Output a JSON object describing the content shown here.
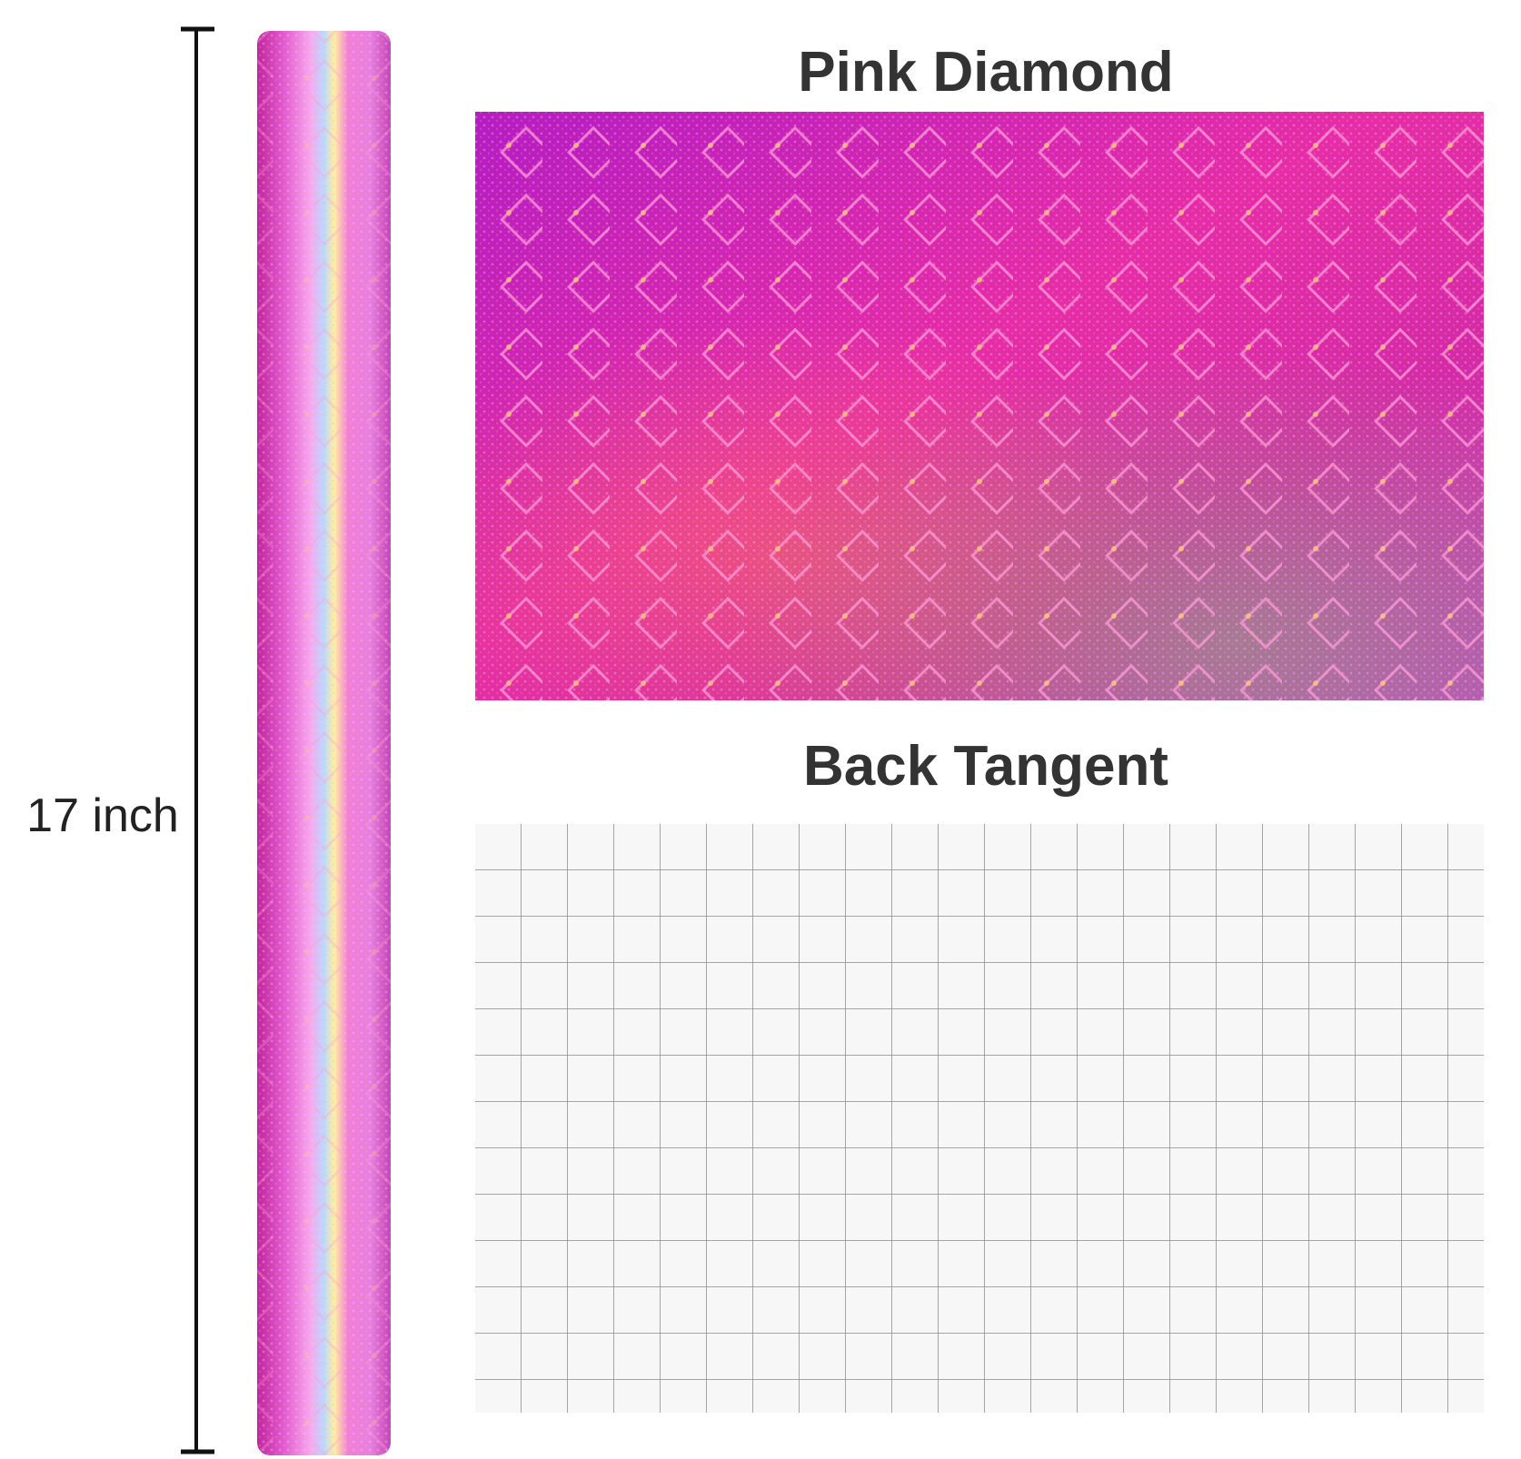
{
  "roll_label": "17 inch",
  "panels": [
    {
      "title": "Pink Diamond"
    },
    {
      "title": "Back Tangent"
    }
  ]
}
